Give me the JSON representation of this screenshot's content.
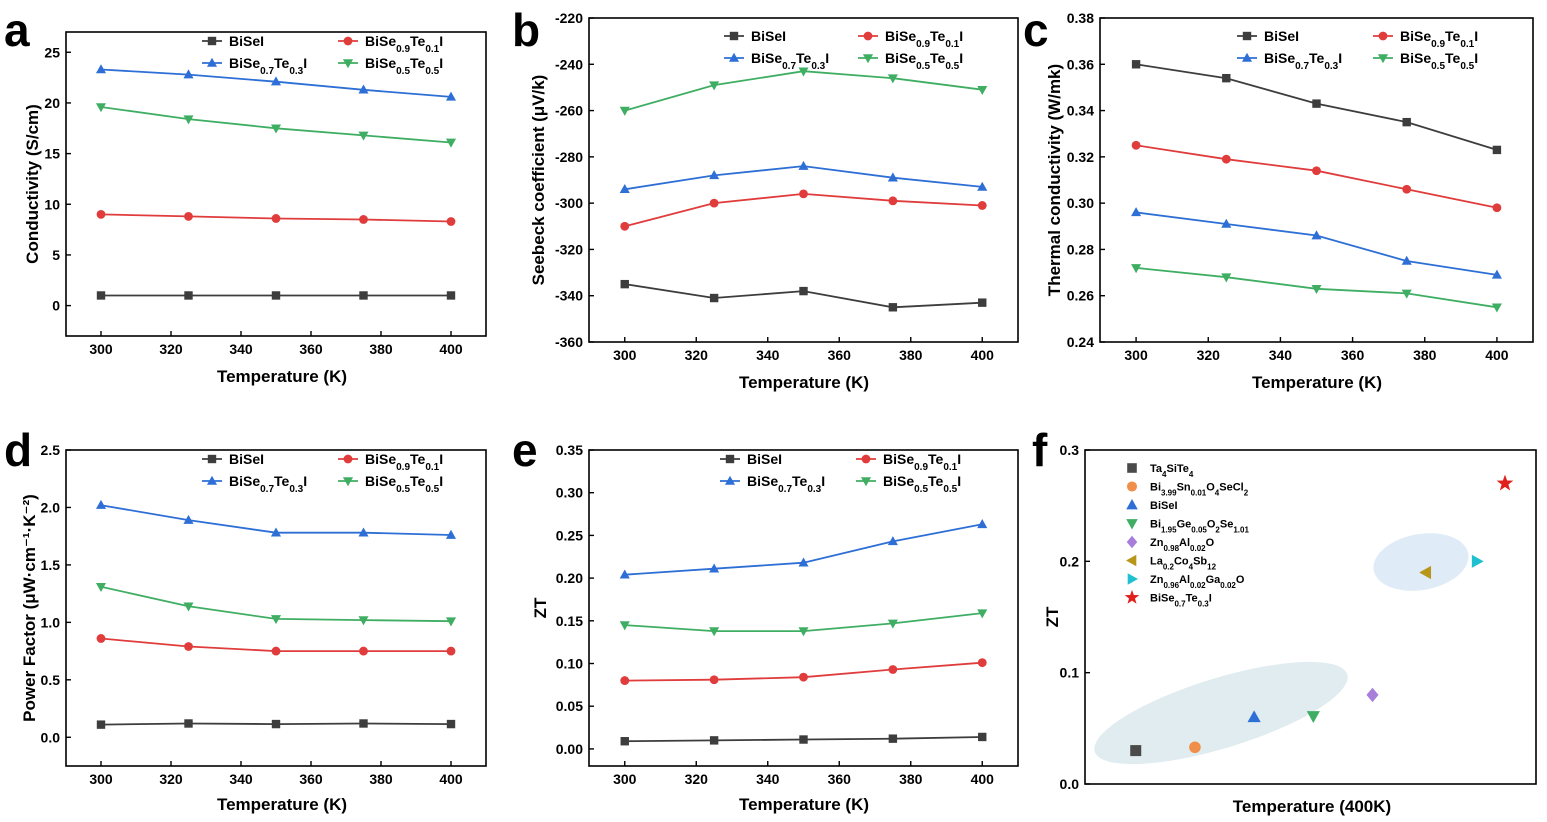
{
  "colors": {
    "BiSeI": "#3d3d3d",
    "BiSe0.9Te0.1I": "#e03c3c",
    "BiSe0.7Te0.3I": "#2e6fd6",
    "BiSe0.5Te0.5I": "#3fae63",
    "blob": "#dbe9ec"
  },
  "legend_series": [
    {
      "key": "BiSeI",
      "base": "BiSeI",
      "parts": [
        [
          "BiSeI",
          ""
        ]
      ],
      "marker": "square"
    },
    {
      "key": "BiSe0.9Te0.1I",
      "parts": [
        [
          "BiSe",
          ""
        ],
        [
          "0.9",
          "sub"
        ],
        [
          "Te",
          ""
        ],
        [
          "0.1",
          "sub"
        ],
        [
          "I",
          ""
        ]
      ],
      "marker": "circle"
    },
    {
      "key": "BiSe0.7Te0.3I",
      "parts": [
        [
          "BiSe",
          ""
        ],
        [
          "0.7",
          "sub"
        ],
        [
          "Te",
          ""
        ],
        [
          "0.3",
          "sub"
        ],
        [
          "I",
          ""
        ]
      ],
      "marker": "triangle-up"
    },
    {
      "key": "BiSe0.5Te0.5I",
      "parts": [
        [
          "BiSe",
          ""
        ],
        [
          "0.5",
          "sub"
        ],
        [
          "Te",
          ""
        ],
        [
          "0.5",
          "sub"
        ],
        [
          "I",
          ""
        ]
      ],
      "marker": "triangle-down"
    }
  ],
  "chart_data": [
    {
      "panel": "a",
      "type": "line",
      "xlabel": "Temperature (K)",
      "ylabel": "Conductivity (S/cm)",
      "xlim": [
        290,
        410
      ],
      "ylim": [
        -3,
        27
      ],
      "xticks": [
        300,
        320,
        340,
        360,
        380,
        400
      ],
      "yticks": [
        0,
        5,
        10,
        15,
        20,
        25
      ],
      "x": [
        300,
        325,
        350,
        375,
        400
      ],
      "series": [
        {
          "name": "BiSeI",
          "values": [
            1.0,
            1.0,
            1.0,
            1.0,
            1.0
          ]
        },
        {
          "name": "BiSe0.9Te0.1I",
          "values": [
            9.0,
            8.8,
            8.6,
            8.5,
            8.3
          ]
        },
        {
          "name": "BiSe0.7Te0.3I",
          "values": [
            23.3,
            22.8,
            22.1,
            21.3,
            20.6
          ]
        },
        {
          "name": "BiSe0.5Te0.5I",
          "values": [
            19.6,
            18.4,
            17.5,
            16.8,
            16.1
          ]
        }
      ]
    },
    {
      "panel": "b",
      "type": "line",
      "xlabel": "Temperature (K)",
      "ylabel": "Seebeck coefficient  (μV/k)",
      "xlim": [
        290,
        410
      ],
      "ylim": [
        -360,
        -220
      ],
      "xticks": [
        300,
        320,
        340,
        360,
        380,
        400
      ],
      "yticks": [
        -360,
        -340,
        -320,
        -300,
        -280,
        -260,
        -240,
        -220
      ],
      "x": [
        300,
        325,
        350,
        375,
        400
      ],
      "series": [
        {
          "name": "BiSeI",
          "values": [
            -335,
            -341,
            -338,
            -345,
            -343
          ]
        },
        {
          "name": "BiSe0.9Te0.1I",
          "values": [
            -310,
            -300,
            -296,
            -299,
            -301
          ]
        },
        {
          "name": "BiSe0.7Te0.3I",
          "values": [
            -294,
            -288,
            -284,
            -289,
            -293
          ]
        },
        {
          "name": "BiSe0.5Te0.5I",
          "values": [
            -260,
            -249,
            -243,
            -246,
            -251
          ]
        }
      ]
    },
    {
      "panel": "c",
      "type": "line",
      "xlabel": "Temperature (K)",
      "ylabel": "Thermal conductivity (W/mk)",
      "xlim": [
        290,
        410
      ],
      "ylim": [
        0.24,
        0.38
      ],
      "xticks": [
        300,
        320,
        340,
        360,
        380,
        400
      ],
      "yticks": [
        0.24,
        0.26,
        0.28,
        0.3,
        0.32,
        0.34,
        0.36,
        0.38
      ],
      "ytick_labels": [
        "0.24",
        "0.26",
        "0.28",
        "0.30",
        "0.32",
        "0.34",
        "0.36",
        "0.38"
      ],
      "x": [
        300,
        325,
        350,
        375,
        400
      ],
      "series": [
        {
          "name": "BiSeI",
          "values": [
            0.36,
            0.354,
            0.343,
            0.335,
            0.323
          ]
        },
        {
          "name": "BiSe0.9Te0.1I",
          "values": [
            0.325,
            0.319,
            0.314,
            0.306,
            0.298
          ]
        },
        {
          "name": "BiSe0.7Te0.3I",
          "values": [
            0.296,
            0.291,
            0.286,
            0.275,
            0.269
          ]
        },
        {
          "name": "BiSe0.5Te0.5I",
          "values": [
            0.272,
            0.268,
            0.263,
            0.261,
            0.255
          ]
        }
      ]
    },
    {
      "panel": "d",
      "type": "line",
      "xlabel": "Temperature (K)",
      "ylabel": "Power Factor (μW·cm⁻¹·K⁻²)",
      "xlim": [
        290,
        410
      ],
      "ylim": [
        -0.25,
        2.5
      ],
      "xticks": [
        300,
        320,
        340,
        360,
        380,
        400
      ],
      "yticks": [
        0.0,
        0.5,
        1.0,
        1.5,
        2.0,
        2.5
      ],
      "ytick_labels": [
        "0.0",
        "0.5",
        "1.0",
        "1.5",
        "2.0",
        "2.5"
      ],
      "x": [
        300,
        325,
        350,
        375,
        400
      ],
      "series": [
        {
          "name": "BiSeI",
          "values": [
            0.11,
            0.12,
            0.115,
            0.12,
            0.115
          ]
        },
        {
          "name": "BiSe0.9Te0.1I",
          "values": [
            0.86,
            0.79,
            0.75,
            0.75,
            0.75
          ]
        },
        {
          "name": "BiSe0.7Te0.3I",
          "values": [
            2.02,
            1.89,
            1.78,
            1.78,
            1.76
          ]
        },
        {
          "name": "BiSe0.5Te0.5I",
          "values": [
            1.31,
            1.14,
            1.03,
            1.02,
            1.01
          ]
        }
      ]
    },
    {
      "panel": "e",
      "type": "line",
      "xlabel": "Temperature (K)",
      "ylabel": "ZT",
      "xlim": [
        290,
        410
      ],
      "ylim": [
        -0.02,
        0.35
      ],
      "xticks": [
        300,
        320,
        340,
        360,
        380,
        400
      ],
      "yticks": [
        0.0,
        0.05,
        0.1,
        0.15,
        0.2,
        0.25,
        0.3,
        0.35
      ],
      "ytick_labels": [
        "0.00",
        "0.05",
        "0.10",
        "0.15",
        "0.20",
        "0.25",
        "0.30",
        "0.35"
      ],
      "x": [
        300,
        325,
        350,
        375,
        400
      ],
      "series": [
        {
          "name": "BiSeI",
          "values": [
            0.009,
            0.01,
            0.011,
            0.012,
            0.014
          ]
        },
        {
          "name": "BiSe0.9Te0.1I",
          "values": [
            0.08,
            0.081,
            0.084,
            0.093,
            0.101
          ]
        },
        {
          "name": "BiSe0.7Te0.3I",
          "values": [
            0.204,
            0.211,
            0.218,
            0.243,
            0.263
          ]
        },
        {
          "name": "BiSe0.5Te0.5I",
          "values": [
            0.145,
            0.138,
            0.138,
            0.147,
            0.159
          ]
        }
      ]
    },
    {
      "panel": "f",
      "type": "scatter",
      "xlabel": "Temperature (400K)",
      "ylabel": "ZT",
      "xlim": [
        0,
        8
      ],
      "ylim": [
        0.0,
        0.3
      ],
      "yticks": [
        0.0,
        0.1,
        0.2,
        0.3
      ],
      "ytick_labels": [
        "0.0",
        "0.1",
        "0.2",
        "0.3"
      ],
      "points": [
        {
          "name": "Ta4SiTe4",
          "parts": [
            [
              "Ta",
              ""
            ],
            [
              "4",
              "sub"
            ],
            [
              "SiTe",
              ""
            ],
            [
              "4",
              "sub"
            ]
          ],
          "x": 0.9,
          "y": 0.03,
          "marker": "square",
          "color": "#4a4a4a"
        },
        {
          "name": "Bi3.99Sn0.01O4SeCl2",
          "parts": [
            [
              "Bi",
              ""
            ],
            [
              "3.99",
              "sub"
            ],
            [
              "Sn",
              ""
            ],
            [
              "0.01",
              "sub"
            ],
            [
              "O",
              ""
            ],
            [
              "4",
              "sub"
            ],
            [
              "SeCl",
              ""
            ],
            [
              "2",
              "sub"
            ]
          ],
          "x": 1.95,
          "y": 0.033,
          "marker": "circle",
          "color": "#ef8f4a"
        },
        {
          "name": "BiSeI",
          "parts": [
            [
              "BiSeI",
              ""
            ]
          ],
          "x": 3.0,
          "y": 0.06,
          "marker": "triangle-up",
          "color": "#2e6fd6"
        },
        {
          "name": "Bi1.95Ge0.05O2Se1.01",
          "parts": [
            [
              "Bi",
              ""
            ],
            [
              "1.95",
              "sub"
            ],
            [
              "Ge",
              ""
            ],
            [
              "0.05",
              "sub"
            ],
            [
              "O",
              ""
            ],
            [
              "2",
              "sub"
            ],
            [
              "Se",
              ""
            ],
            [
              "1.01",
              "sub"
            ]
          ],
          "x": 4.05,
          "y": 0.061,
          "marker": "triangle-down",
          "color": "#3fae63"
        },
        {
          "name": "Zn0.98Al0.02O",
          "parts": [
            [
              "Zn",
              ""
            ],
            [
              "0.98",
              "sub"
            ],
            [
              "Al",
              ""
            ],
            [
              "0.02",
              "sub"
            ],
            [
              "O",
              ""
            ]
          ],
          "x": 5.1,
          "y": 0.08,
          "marker": "diamond",
          "color": "#a77ed9"
        },
        {
          "name": "La0.2Co4Sb12",
          "parts": [
            [
              "La",
              ""
            ],
            [
              "0.2",
              "sub"
            ],
            [
              "Co",
              ""
            ],
            [
              "4",
              "sub"
            ],
            [
              "Sb",
              ""
            ],
            [
              "12",
              "sub"
            ]
          ],
          "x": 6.05,
          "y": 0.19,
          "marker": "triangle-left",
          "color": "#b8961a"
        },
        {
          "name": "Zn0.96Al0.02Ga0.02O",
          "parts": [
            [
              "Zn",
              ""
            ],
            [
              "0.96",
              "sub"
            ],
            [
              "Al",
              ""
            ],
            [
              "0.02",
              "sub"
            ],
            [
              "Ga",
              ""
            ],
            [
              "0.02",
              "sub"
            ],
            [
              "O",
              ""
            ]
          ],
          "x": 6.95,
          "y": 0.2,
          "marker": "triangle-right",
          "color": "#1fc0cf"
        },
        {
          "name": "BiSe0.7Te0.3I",
          "parts": [
            [
              "BiSe",
              ""
            ],
            [
              "0.7",
              "sub"
            ],
            [
              "Te",
              ""
            ],
            [
              "0.3",
              "sub"
            ],
            [
              "I",
              ""
            ]
          ],
          "x": 7.45,
          "y": 0.27,
          "marker": "star",
          "color": "#e0201c"
        }
      ]
    }
  ]
}
